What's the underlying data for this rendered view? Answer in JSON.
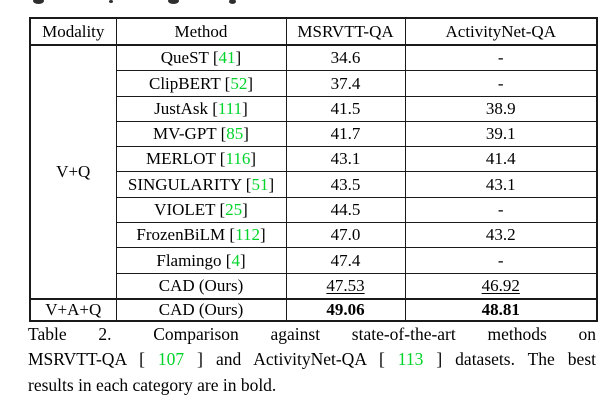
{
  "colors": {
    "citation_green": "#00d42a",
    "text": "#000000",
    "border": "#1a1a1a",
    "background": "#ffffff"
  },
  "table": {
    "headers": [
      "Modality",
      "Method",
      "MSRVTT-QA",
      "ActivityNet-QA"
    ],
    "groups": [
      {
        "modality": "V+Q",
        "rows": [
          {
            "method": "QueST",
            "cite": "41",
            "msrvtt": "34.6",
            "activitynet": "-"
          },
          {
            "method": "ClipBERT",
            "cite": "52",
            "msrvtt": "37.4",
            "activitynet": "-"
          },
          {
            "method": "JustAsk",
            "cite": "111",
            "msrvtt": "41.5",
            "activitynet": "38.9"
          },
          {
            "method": "MV-GPT",
            "cite": "85",
            "msrvtt": "41.7",
            "activitynet": "39.1"
          },
          {
            "method": "MERLOT",
            "cite": "116",
            "msrvtt": "43.1",
            "activitynet": "41.4"
          },
          {
            "method": "SINGULARITY",
            "cite": "51",
            "msrvtt": "43.5",
            "activitynet": "43.1"
          },
          {
            "method": "VIOLET",
            "cite": "25",
            "msrvtt": "44.5",
            "activitynet": "-"
          },
          {
            "method": "FrozenBiLM",
            "cite": "112",
            "msrvtt": "47.0",
            "activitynet": "43.2"
          },
          {
            "method": "Flamingo",
            "cite": "4",
            "msrvtt": "47.4",
            "activitynet": "-"
          },
          {
            "method": "CAD (Ours)",
            "cite": null,
            "msrvtt": "47.53",
            "activitynet": "46.92",
            "underline": true
          }
        ]
      },
      {
        "modality": "V+A+Q",
        "rows": [
          {
            "method": "CAD (Ours)",
            "cite": null,
            "msrvtt": "49.06",
            "activitynet": "48.81",
            "bold": true
          }
        ]
      }
    ]
  },
  "caption": {
    "lines": [
      {
        "justify": true,
        "segments": [
          {
            "text": "Table 2.",
            "gap_after": true
          },
          {
            "text": "Comparison against state-of-the-art methods on"
          }
        ]
      },
      {
        "justify": true,
        "segments": [
          {
            "text": "MSRVTT-QA ["
          },
          {
            "text": "107",
            "green": true
          },
          {
            "text": "] and ActivityNet-QA ["
          },
          {
            "text": "113",
            "green": true
          },
          {
            "text": "] datasets. The best"
          }
        ]
      },
      {
        "justify": false,
        "segments": [
          {
            "text": "results in each category are in bold."
          }
        ]
      }
    ]
  }
}
